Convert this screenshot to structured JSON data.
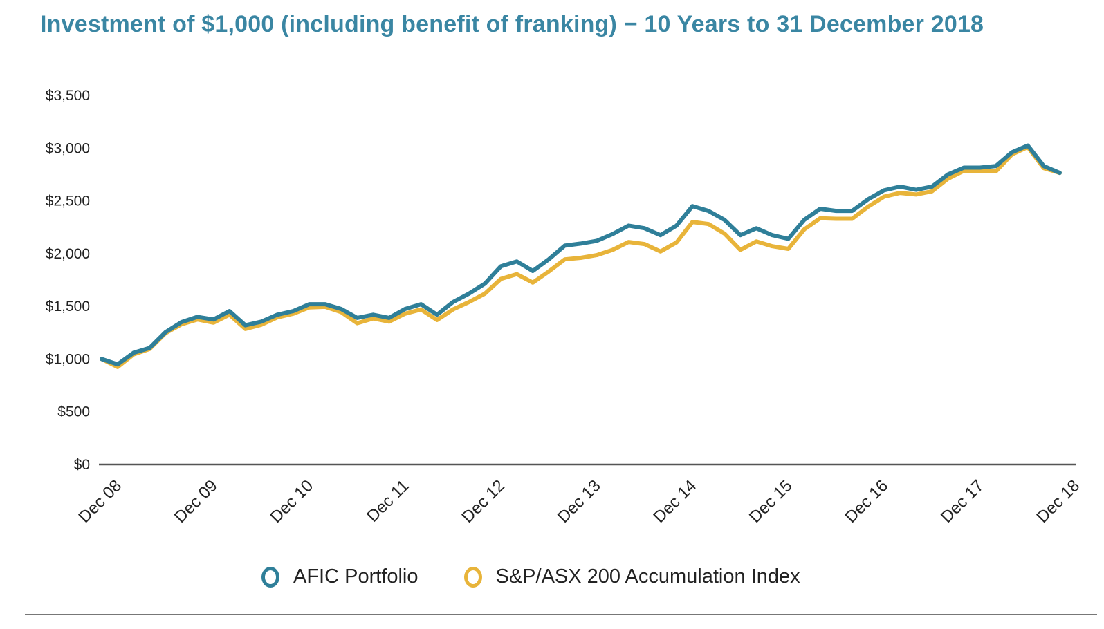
{
  "chart_data": {
    "type": "line",
    "title": "Investment of $1,000 (including benefit of franking) − 10 Years to 31 December 2018",
    "xlabel": "",
    "ylabel": "",
    "ylim": [
      0,
      3500
    ],
    "yticks": [
      0,
      500,
      1000,
      1500,
      2000,
      2500,
      3000,
      3500
    ],
    "ytick_labels": [
      "$0",
      "$500",
      "$1,000",
      "$1,500",
      "$2,000",
      "$2,500",
      "$3,000",
      "$3,500"
    ],
    "xlim": [
      0,
      120
    ],
    "xticks": [
      0,
      12,
      24,
      36,
      48,
      60,
      72,
      84,
      96,
      108,
      120
    ],
    "xtick_labels": [
      "Dec 08",
      "Dec 09",
      "Dec 10",
      "Dec 11",
      "Dec 12",
      "Dec 13",
      "Dec 14",
      "Dec 15",
      "Dec 16",
      "Dec 17",
      "Dec 18"
    ],
    "x_unit": "months since Dec 2008",
    "grid": false,
    "legend_position": "bottom",
    "x": [
      0,
      2,
      4,
      6,
      8,
      10,
      12,
      14,
      16,
      18,
      20,
      22,
      24,
      26,
      28,
      30,
      32,
      34,
      36,
      38,
      40,
      42,
      44,
      46,
      48,
      50,
      52,
      54,
      56,
      58,
      60,
      62,
      64,
      66,
      68,
      70,
      72,
      74,
      76,
      78,
      80,
      82,
      84,
      86,
      88,
      90,
      92,
      94,
      96,
      98,
      100,
      102,
      104,
      106,
      108,
      110,
      112,
      114,
      116,
      118,
      120
    ],
    "series": [
      {
        "name": "AFIC Portfolio",
        "color": "#2f7f99",
        "values": [
          1000,
          950,
          1060,
          1105,
          1255,
          1350,
          1400,
          1375,
          1455,
          1320,
          1355,
          1420,
          1455,
          1520,
          1520,
          1475,
          1390,
          1420,
          1390,
          1475,
          1520,
          1420,
          1540,
          1620,
          1715,
          1880,
          1925,
          1835,
          1945,
          2075,
          2095,
          2120,
          2185,
          2265,
          2240,
          2175,
          2265,
          2450,
          2405,
          2320,
          2175,
          2240,
          2175,
          2140,
          2320,
          2425,
          2405,
          2405,
          2515,
          2600,
          2635,
          2605,
          2635,
          2750,
          2815,
          2815,
          2830,
          2960,
          3025,
          2830,
          2765
        ]
      },
      {
        "name": "S&P/ASX 200 Accumulation Index",
        "color": "#e8b43a",
        "values": [
          1000,
          925,
          1045,
          1095,
          1245,
          1330,
          1375,
          1345,
          1420,
          1285,
          1325,
          1395,
          1430,
          1490,
          1495,
          1445,
          1340,
          1385,
          1355,
          1430,
          1470,
          1370,
          1470,
          1540,
          1620,
          1760,
          1805,
          1725,
          1830,
          1945,
          1960,
          1985,
          2035,
          2110,
          2090,
          2020,
          2105,
          2300,
          2280,
          2190,
          2035,
          2115,
          2070,
          2045,
          2230,
          2335,
          2330,
          2330,
          2445,
          2540,
          2575,
          2560,
          2590,
          2710,
          2785,
          2780,
          2780,
          2940,
          3010,
          2810,
          2765
        ]
      }
    ]
  },
  "legend": {
    "items": [
      {
        "label": "AFIC Portfolio",
        "color": "#2f7f99"
      },
      {
        "label": "S&P/ASX 200 Accumulation Index",
        "color": "#e8b43a"
      }
    ]
  }
}
